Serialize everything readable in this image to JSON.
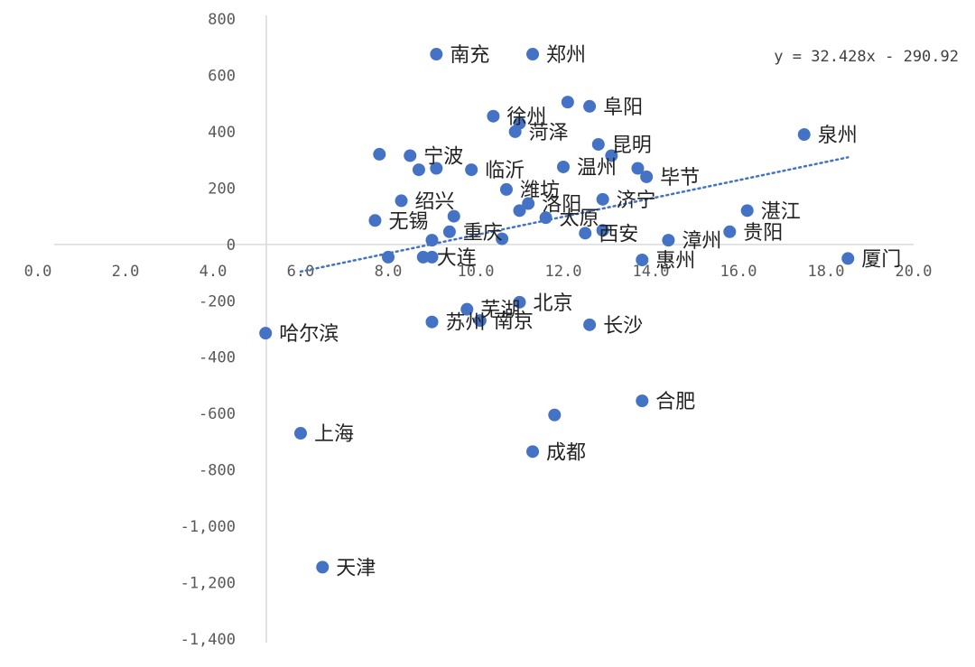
{
  "chart_data": {
    "type": "scatter",
    "title": "",
    "xlabel": "",
    "ylabel": "",
    "xlim": [
      0,
      20
    ],
    "ylim": [
      -1400,
      800
    ],
    "x_ticks": [
      "0.0",
      "2.0",
      "4.0",
      "6.0",
      "8.0",
      "10.0",
      "12.0",
      "14.0",
      "16.0",
      "18.0",
      "20.0"
    ],
    "x_tick_values": [
      0,
      2,
      4,
      6,
      8,
      10,
      12,
      14,
      16,
      18,
      20
    ],
    "y_ticks": [
      "800",
      "600",
      "400",
      "200",
      "0",
      "-200",
      "-400",
      "-600",
      "-800",
      "-1,000",
      "-1,200",
      "-1,400"
    ],
    "y_tick_values": [
      800,
      600,
      400,
      200,
      0,
      -200,
      -400,
      -600,
      -800,
      -1000,
      -1200,
      -1400
    ],
    "trendline": {
      "equation": "y = 32.428x - 290.92",
      "slope": 32.428,
      "intercept": -290.92,
      "x_range": [
        6.0,
        18.5
      ]
    },
    "points": [
      {
        "name": "南充",
        "x": 9.1,
        "y": 675
      },
      {
        "name": "郑州",
        "x": 11.3,
        "y": 675
      },
      {
        "name": "阜阳",
        "x": 12.6,
        "y": 490
      },
      {
        "name": "",
        "x": 12.1,
        "y": 505
      },
      {
        "name": "徐州",
        "x": 10.4,
        "y": 455
      },
      {
        "name": "菏泽",
        "x": 10.9,
        "y": 400
      },
      {
        "name": "",
        "x": 11.0,
        "y": 430
      },
      {
        "name": "泉州",
        "x": 17.5,
        "y": 390
      },
      {
        "name": "昆明",
        "x": 12.8,
        "y": 355
      },
      {
        "name": "",
        "x": 13.1,
        "y": 315
      },
      {
        "name": "宁波",
        "x": 8.5,
        "y": 315
      },
      {
        "name": "",
        "x": 7.8,
        "y": 320
      },
      {
        "name": "",
        "x": 8.7,
        "y": 265
      },
      {
        "name": "",
        "x": 9.1,
        "y": 270
      },
      {
        "name": "临沂",
        "x": 9.9,
        "y": 265
      },
      {
        "name": "温州",
        "x": 12.0,
        "y": 275
      },
      {
        "name": "",
        "x": 13.7,
        "y": 270
      },
      {
        "name": "毕节",
        "x": 13.9,
        "y": 240
      },
      {
        "name": "潍坊",
        "x": 10.7,
        "y": 195
      },
      {
        "name": "绍兴",
        "x": 8.3,
        "y": 155
      },
      {
        "name": "济宁",
        "x": 12.9,
        "y": 160
      },
      {
        "name": "洛阳",
        "x": 11.2,
        "y": 145
      },
      {
        "name": "",
        "x": 11.0,
        "y": 120
      },
      {
        "name": "湛江",
        "x": 16.2,
        "y": 120
      },
      {
        "name": "无锡",
        "x": 7.7,
        "y": 85
      },
      {
        "name": "",
        "x": 9.5,
        "y": 100
      },
      {
        "name": "太原",
        "x": 11.6,
        "y": 95
      },
      {
        "name": "重庆",
        "x": 9.4,
        "y": 45
      },
      {
        "name": "西安",
        "x": 12.5,
        "y": 40
      },
      {
        "name": "",
        "x": 12.9,
        "y": 50
      },
      {
        "name": "贵阳",
        "x": 15.8,
        "y": 45
      },
      {
        "name": "",
        "x": 9.0,
        "y": 15
      },
      {
        "name": "",
        "x": 10.6,
        "y": 20
      },
      {
        "name": "漳州",
        "x": 14.4,
        "y": 15
      },
      {
        "name": "大连",
        "x": 8.8,
        "y": -45
      },
      {
        "name": "",
        "x": 8.0,
        "y": -45
      },
      {
        "name": "",
        "x": 9.0,
        "y": -45
      },
      {
        "name": "惠州",
        "x": 13.8,
        "y": -55
      },
      {
        "name": "厦门",
        "x": 18.5,
        "y": -50
      },
      {
        "name": "芜湖",
        "x": 9.8,
        "y": -230
      },
      {
        "name": "北京",
        "x": 11.0,
        "y": -205
      },
      {
        "name": "苏州",
        "x": 9.0,
        "y": -275
      },
      {
        "name": "南京",
        "x": 10.1,
        "y": -270
      },
      {
        "name": "长沙",
        "x": 12.6,
        "y": -285
      },
      {
        "name": "哈尔滨",
        "x": 5.2,
        "y": -315
      },
      {
        "name": "合肥",
        "x": 13.8,
        "y": -555
      },
      {
        "name": "",
        "x": 11.8,
        "y": -605
      },
      {
        "name": "上海",
        "x": 6.0,
        "y": -670
      },
      {
        "name": "成都",
        "x": 11.3,
        "y": -735
      },
      {
        "name": "天津",
        "x": 6.5,
        "y": -1145
      }
    ]
  }
}
